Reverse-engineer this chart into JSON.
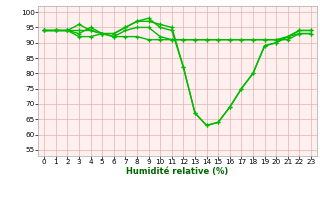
{
  "xlabel": "Humidité relative (%)",
  "bg_color": "#ffffff",
  "plot_bg_color": "#fff0f0",
  "grid_color": "#e8b0b0",
  "line_color": "#00bb00",
  "xlim": [
    -0.5,
    23.5
  ],
  "ylim": [
    53,
    102
  ],
  "yticks": [
    55,
    60,
    65,
    70,
    75,
    80,
    85,
    90,
    95,
    100
  ],
  "xticks": [
    0,
    1,
    2,
    3,
    4,
    5,
    6,
    7,
    8,
    9,
    10,
    11,
    12,
    13,
    14,
    15,
    16,
    17,
    18,
    19,
    20,
    21,
    22,
    23
  ],
  "series": [
    [
      94,
      94,
      94,
      93,
      95,
      93,
      93,
      95,
      97,
      98,
      95,
      94,
      82,
      67,
      63,
      64,
      69,
      75,
      80,
      89,
      90,
      92,
      94,
      94
    ],
    [
      94,
      94,
      94,
      92,
      92,
      93,
      92,
      94,
      95,
      95,
      92,
      91,
      91,
      91,
      91,
      91,
      91,
      91,
      91,
      91,
      91,
      92,
      93,
      93
    ],
    [
      94,
      94,
      94,
      96,
      94,
      93,
      93,
      95,
      97,
      97,
      96,
      95,
      82,
      67,
      63,
      64,
      69,
      75,
      80,
      89,
      90,
      92,
      94,
      94
    ],
    [
      94,
      94,
      94,
      94,
      94,
      93,
      92,
      92,
      92,
      91,
      91,
      91,
      91,
      91,
      91,
      91,
      91,
      91,
      91,
      91,
      91,
      91,
      93,
      93
    ]
  ],
  "xlabel_color": "#006600",
  "xlabel_fontsize": 6.0,
  "tick_fontsize": 5.2,
  "linewidth": 1.0,
  "markersize": 2.5
}
